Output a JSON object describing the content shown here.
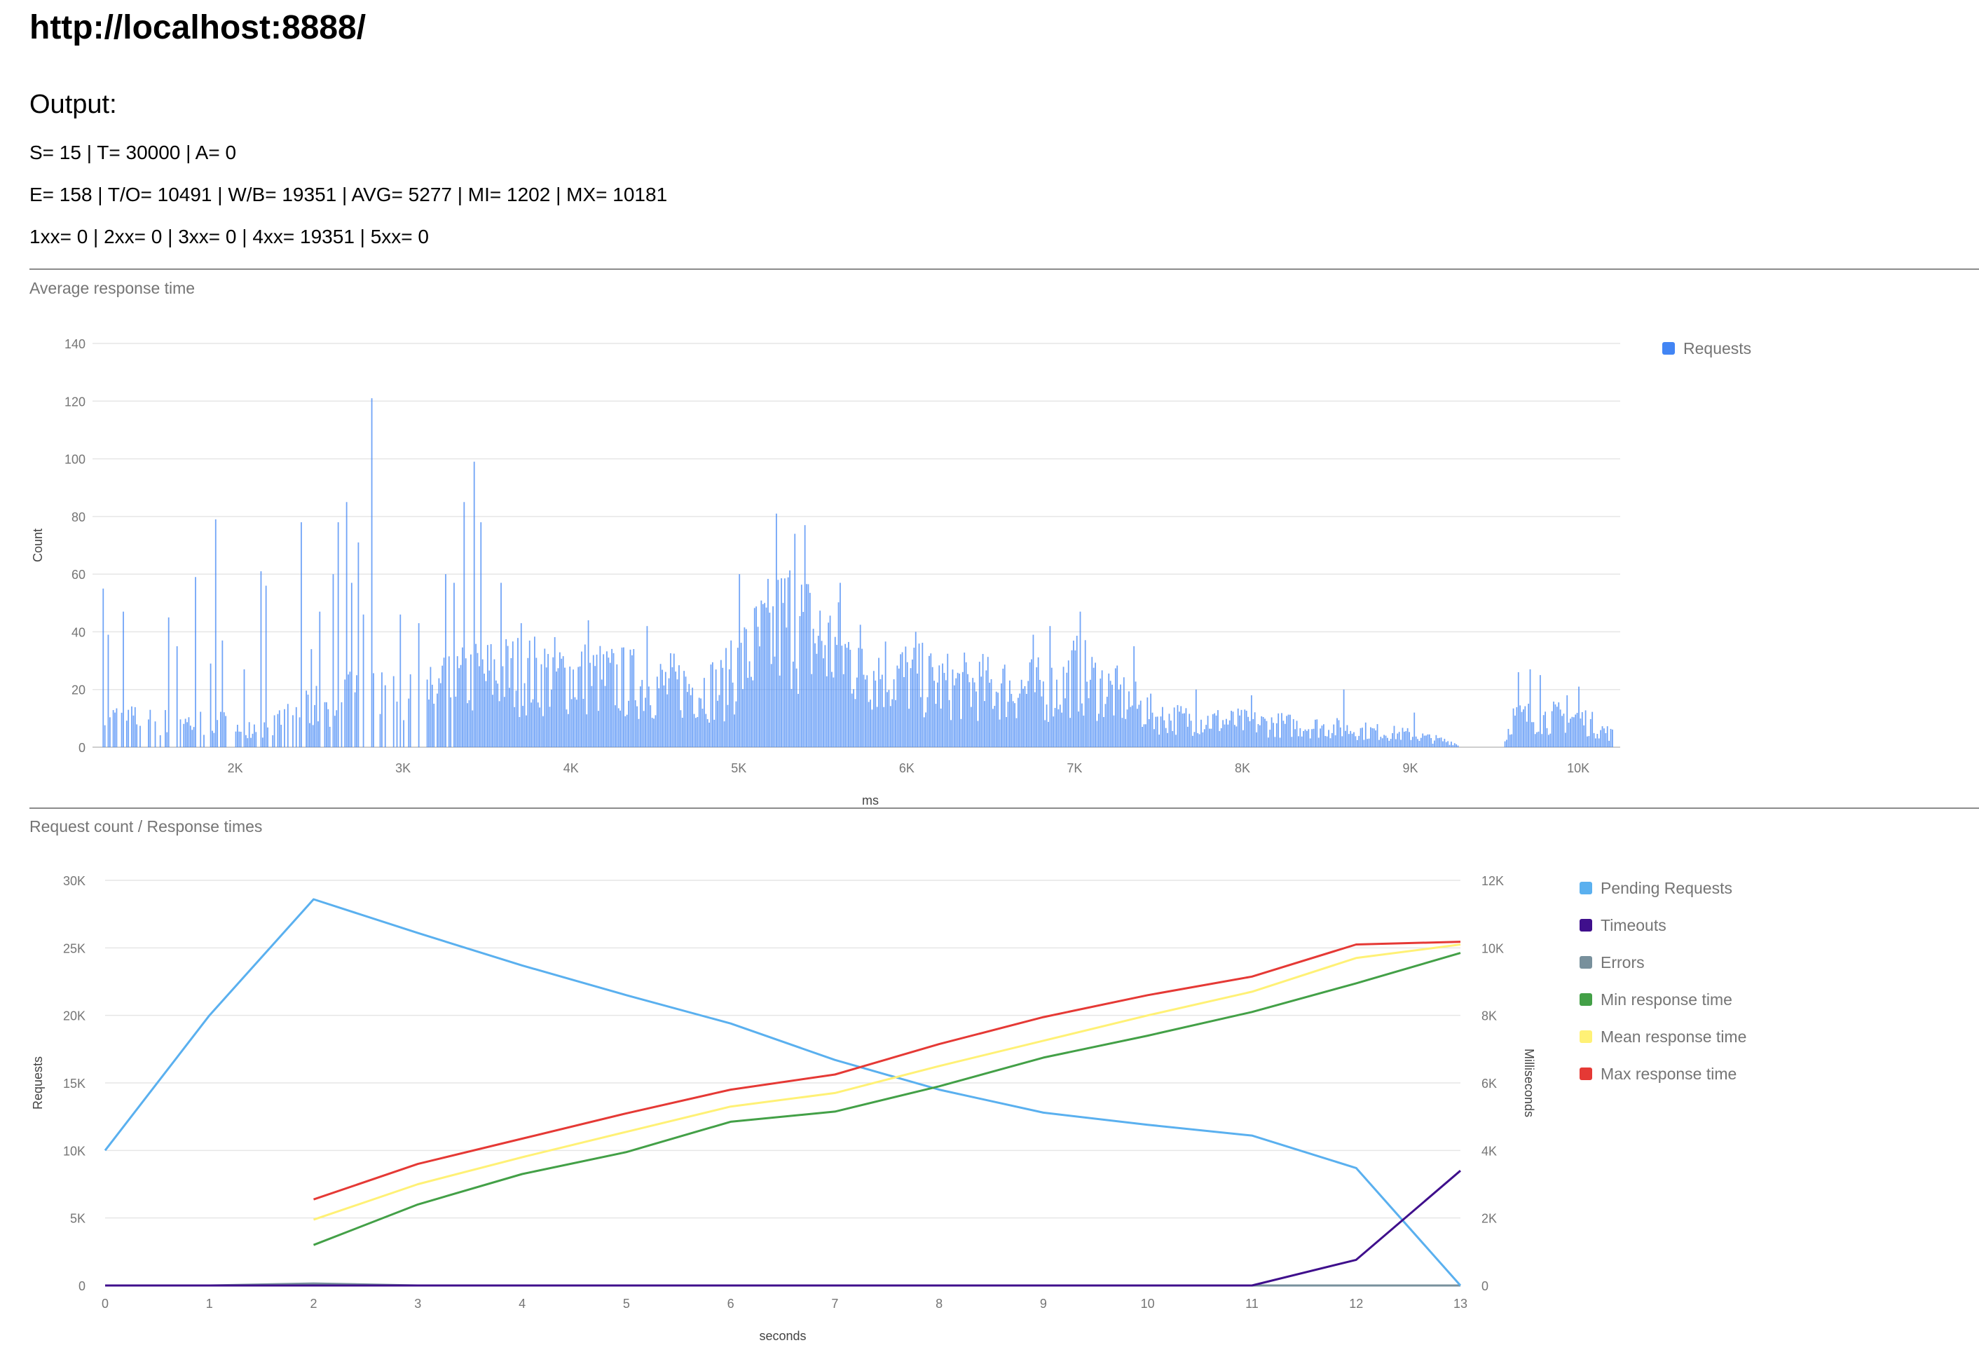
{
  "page": {
    "url": "http://localhost:8888/",
    "output_label": "Output:",
    "stats_line1": "S= 15 | T= 30000 | A= 0",
    "stats_line2": "E= 158 | T/O= 10491 | W/B= 19351 | AVG= 5277 | MI= 1202 | MX= 10181",
    "stats_line3": "1xx= 0 | 2xx= 0 | 3xx= 0 | 4xx= 19351 | 5xx= 0"
  },
  "colors": {
    "requests": "#4285f4",
    "pending": "#5ab0ef",
    "timeouts": "#3f0f8c",
    "errors": "#78909c",
    "min": "#43a047",
    "mean": "#fff176",
    "max": "#e53935",
    "grid": "#e6e6e6",
    "axis_text": "#757575"
  },
  "chart_data": [
    {
      "type": "bar",
      "title": "Average response time",
      "xlabel": "ms",
      "ylabel": "Count",
      "xlim": [
        1150,
        10250
      ],
      "ylim": [
        0,
        140
      ],
      "xticks": [
        2000,
        3000,
        4000,
        5000,
        6000,
        7000,
        8000,
        9000,
        10000
      ],
      "xtick_labels": [
        "2K",
        "3K",
        "4K",
        "5K",
        "6K",
        "7K",
        "8K",
        "9K",
        "10K"
      ],
      "yticks": [
        0,
        20,
        40,
        60,
        80,
        100,
        120,
        140
      ],
      "legend": [
        "Requests"
      ],
      "legend_position": "right",
      "bin_width_ms": 10,
      "profile": [
        [
          1200,
          12
        ],
        [
          1600,
          10
        ],
        [
          1900,
          10
        ],
        [
          2200,
          8
        ],
        [
          2400,
          14
        ],
        [
          2600,
          20
        ],
        [
          2800,
          20
        ],
        [
          3000,
          18
        ],
        [
          3200,
          22
        ],
        [
          3400,
          28
        ],
        [
          3600,
          30
        ],
        [
          4000,
          29
        ],
        [
          4500,
          25
        ],
        [
          4900,
          24
        ],
        [
          5100,
          40
        ],
        [
          5300,
          52
        ],
        [
          5500,
          42
        ],
        [
          5800,
          32
        ],
        [
          6200,
          25
        ],
        [
          6600,
          24
        ],
        [
          6900,
          23
        ],
        [
          7000,
          30
        ],
        [
          7500,
          12
        ],
        [
          8000,
          10
        ],
        [
          8500,
          8
        ],
        [
          9000,
          5
        ],
        [
          9250,
          2
        ],
        [
          9300,
          0
        ],
        [
          9550,
          0
        ],
        [
          9600,
          12
        ],
        [
          10000,
          12
        ],
        [
          10200,
          5
        ]
      ],
      "spikes": [
        [
          1210,
          55
        ],
        [
          1240,
          39
        ],
        [
          1330,
          47
        ],
        [
          1600,
          45
        ],
        [
          1650,
          35
        ],
        [
          1760,
          59
        ],
        [
          1850,
          29
        ],
        [
          1880,
          79
        ],
        [
          1920,
          37
        ],
        [
          2050,
          27
        ],
        [
          2150,
          61
        ],
        [
          2180,
          56
        ],
        [
          2310,
          15
        ],
        [
          2390,
          78
        ],
        [
          2450,
          34
        ],
        [
          2500,
          47
        ],
        [
          2580,
          60
        ],
        [
          2610,
          78
        ],
        [
          2660,
          85
        ],
        [
          2690,
          57
        ],
        [
          2730,
          71
        ],
        [
          2760,
          46
        ],
        [
          2810,
          121
        ],
        [
          2980,
          46
        ],
        [
          3090,
          43
        ],
        [
          3250,
          60
        ],
        [
          3300,
          57
        ],
        [
          3360,
          85
        ],
        [
          3420,
          99
        ],
        [
          3460,
          78
        ],
        [
          3580,
          57
        ],
        [
          3700,
          43
        ],
        [
          4100,
          44
        ],
        [
          4450,
          42
        ],
        [
          4950,
          37
        ],
        [
          5000,
          60
        ],
        [
          5220,
          81
        ],
        [
          5330,
          74
        ],
        [
          5390,
          77
        ],
        [
          5600,
          57
        ],
        [
          6050,
          40
        ],
        [
          6750,
          39
        ],
        [
          6850,
          42
        ],
        [
          7030,
          47
        ],
        [
          7350,
          35
        ],
        [
          7720,
          20
        ],
        [
          8050,
          18
        ],
        [
          8600,
          20
        ],
        [
          9020,
          12
        ],
        [
          9640,
          26
        ],
        [
          9710,
          27
        ],
        [
          9770,
          25
        ],
        [
          9930,
          18
        ],
        [
          10000,
          21
        ]
      ]
    },
    {
      "type": "line",
      "title": "Request count / Response times",
      "xlabel": "seconds",
      "ylabel": "Requests",
      "ylabel_right": "Milliseconds",
      "x": [
        0,
        1,
        2,
        3,
        4,
        5,
        6,
        7,
        8,
        9,
        10,
        11,
        12,
        13
      ],
      "xlim": [
        0,
        13
      ],
      "ylim": [
        0,
        30000
      ],
      "ylim_right": [
        0,
        12000
      ],
      "yticks_left": [
        "0",
        "5K",
        "10K",
        "15K",
        "20K",
        "25K",
        "30K"
      ],
      "yticks_right": [
        "0",
        "2K",
        "4K",
        "6K",
        "8K",
        "10K",
        "12K"
      ],
      "legend_position": "right",
      "series": [
        {
          "name": "Pending Requests",
          "axis": "left",
          "color_key": "pending",
          "values": [
            10000,
            20000,
            28600,
            26100,
            23700,
            21500,
            19400,
            16700,
            14500,
            12800,
            11900,
            11100,
            8700,
            0
          ]
        },
        {
          "name": "Timeouts",
          "axis": "left",
          "color_key": "timeouts",
          "values": [
            0,
            0,
            0,
            0,
            0,
            0,
            0,
            0,
            0,
            0,
            0,
            0,
            1900,
            8500
          ]
        },
        {
          "name": "Errors",
          "axis": "left",
          "color_key": "errors",
          "values": [
            0,
            0,
            150,
            0,
            0,
            0,
            0,
            0,
            0,
            0,
            0,
            0,
            0,
            0
          ]
        },
        {
          "name": "Min response time",
          "axis": "right",
          "color_key": "min",
          "values": [
            null,
            null,
            1200,
            2400,
            3300,
            3950,
            4850,
            5150,
            5900,
            6750,
            7400,
            8100,
            8950,
            9850
          ]
        },
        {
          "name": "Mean response time",
          "axis": "right",
          "color_key": "mean",
          "values": [
            null,
            null,
            1950,
            3000,
            3800,
            4550,
            5300,
            5700,
            6500,
            7250,
            8000,
            8700,
            9700,
            10100
          ]
        },
        {
          "name": "Max response time",
          "axis": "right",
          "color_key": "max",
          "values": [
            null,
            null,
            2550,
            3600,
            4350,
            5100,
            5800,
            6250,
            7150,
            7950,
            8600,
            9150,
            10100,
            10181
          ]
        }
      ]
    }
  ]
}
